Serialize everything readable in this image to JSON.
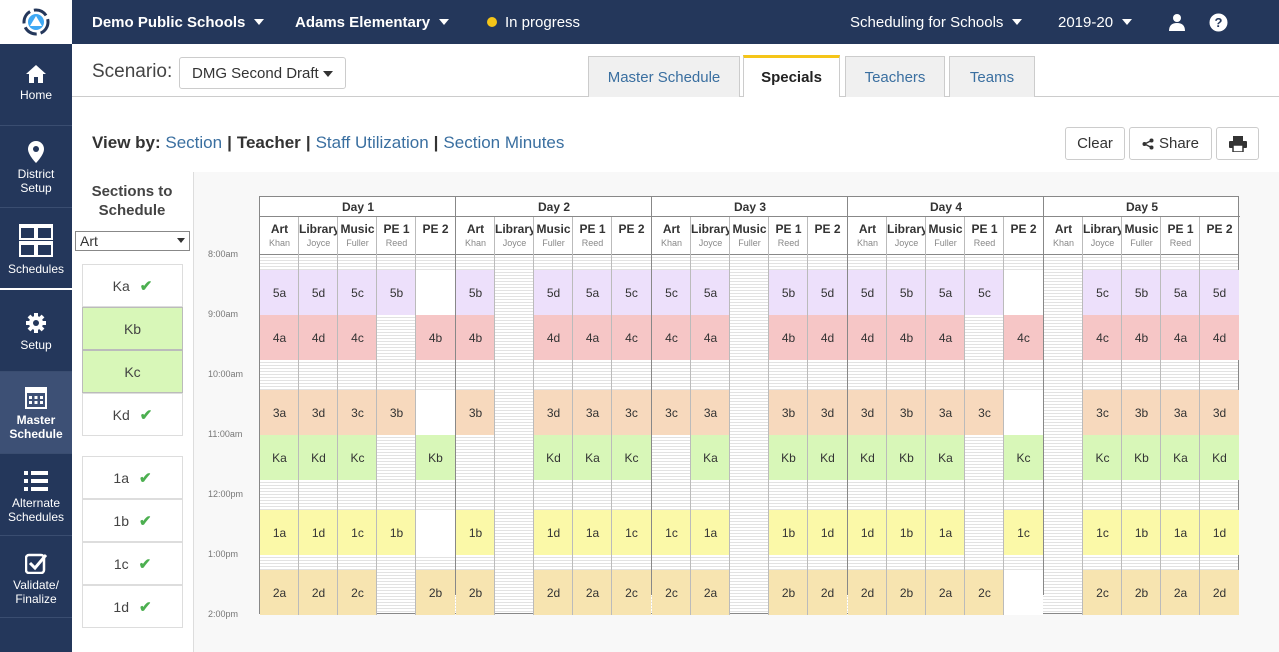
{
  "topbar": {
    "district": "Demo Public Schools",
    "school": "Adams Elementary",
    "status": "In progress",
    "product": "Scheduling for Schools",
    "year": "2019-20"
  },
  "sidenav": [
    {
      "label": "Home",
      "icon": "home-icon"
    },
    {
      "label": "District Setup",
      "icon": "map-pin-icon"
    },
    {
      "label": "Schedules",
      "icon": "calendar-grid-icon"
    },
    {
      "label": "Setup",
      "icon": "gear-icon"
    },
    {
      "label": "Master Schedule",
      "icon": "calendar-icon"
    },
    {
      "label": "Alternate Schedules",
      "icon": "list-icon"
    },
    {
      "label": "Validate/ Finalize",
      "icon": "checkbox-icon"
    }
  ],
  "scenario": {
    "label": "Scenario:",
    "value": "DMG Second Draft"
  },
  "tabs": [
    "Master Schedule",
    "Specials",
    "Teachers",
    "Teams"
  ],
  "active_tab": "Specials",
  "viewby": {
    "label": "View by:",
    "options": [
      "Section",
      "Teacher",
      "Staff Utilization",
      "Section Minutes"
    ],
    "selected": "Teacher"
  },
  "buttons": {
    "clear": "Clear",
    "share": "Share"
  },
  "sections_panel": {
    "title": "Sections to Schedule",
    "filter": "Art",
    "groups": [
      [
        {
          "name": "Ka",
          "checked": true,
          "highlight": false
        },
        {
          "name": "Kb",
          "checked": false,
          "highlight": true
        },
        {
          "name": "Kc",
          "checked": false,
          "highlight": true
        },
        {
          "name": "Kd",
          "checked": true,
          "highlight": false
        }
      ],
      [
        {
          "name": "1a",
          "checked": true,
          "highlight": false
        },
        {
          "name": "1b",
          "checked": true,
          "highlight": false
        },
        {
          "name": "1c",
          "checked": true,
          "highlight": false
        },
        {
          "name": "1d",
          "checked": true,
          "highlight": false
        }
      ]
    ]
  },
  "schedule": {
    "days": [
      "Day 1",
      "Day 2",
      "Day 3",
      "Day 4",
      "Day 5"
    ],
    "columns": [
      {
        "name": "Art",
        "teacher": "Khan"
      },
      {
        "name": "Library",
        "teacher": "Joyce"
      },
      {
        "name": "Music",
        "teacher": "Fuller"
      },
      {
        "name": "PE 1",
        "teacher": "Reed"
      },
      {
        "name": "PE 2",
        "teacher": ""
      }
    ],
    "times": [
      "8:00am",
      "9:00am",
      "10:00am",
      "11:00am",
      "12:00pm",
      "1:00pm",
      "2:00pm"
    ],
    "grid_start_time": "8:00am",
    "periods": [
      {
        "start": "8:15",
        "end": "9:00",
        "color": "#ede0fb",
        "cells": [
          [
            "5a",
            "5d",
            "5c",
            "5b",
            ""
          ],
          [
            "5b",
            "",
            "5d",
            "5a",
            "5c"
          ],
          [
            "5c",
            "5a",
            "",
            "5b",
            "5d"
          ],
          [
            "5d",
            "5b",
            "5a",
            "5c",
            ""
          ],
          [
            "",
            "5c",
            "5b",
            "5a",
            "5d"
          ]
        ]
      },
      {
        "start": "9:00",
        "end": "9:45",
        "color": "#f6c6c6",
        "cells": [
          [
            "4a",
            "4d",
            "4c",
            "",
            "4b"
          ],
          [
            "4b",
            "",
            "4d",
            "4a",
            "4c"
          ],
          [
            "4c",
            "4a",
            "",
            "4b",
            "4d"
          ],
          [
            "4d",
            "4b",
            "4a",
            "",
            "4c"
          ],
          [
            "",
            "4c",
            "4b",
            "4a",
            "4d"
          ]
        ]
      },
      {
        "start": "10:15",
        "end": "11:00",
        "color": "#f7d9bd",
        "cells": [
          [
            "3a",
            "3d",
            "3c",
            "3b",
            ""
          ],
          [
            "3b",
            "",
            "3d",
            "3a",
            "3c"
          ],
          [
            "3c",
            "3a",
            "",
            "3b",
            "3d"
          ],
          [
            "3d",
            "3b",
            "3a",
            "3c",
            ""
          ],
          [
            "",
            "3c",
            "3b",
            "3a",
            "3d"
          ]
        ]
      },
      {
        "start": "11:00",
        "end": "11:45",
        "color": "#d8f7b8",
        "cells": [
          [
            "Ka",
            "Kd",
            "Kc",
            "",
            "Kb"
          ],
          [
            "",
            "",
            "Kd",
            "Ka",
            "Kc"
          ],
          [
            "",
            "Ka",
            "",
            "Kb",
            "Kd"
          ],
          [
            "Kd",
            "Kb",
            "Ka",
            "",
            "Kc"
          ],
          [
            "",
            "Kc",
            "Kb",
            "Ka",
            "Kd"
          ]
        ]
      },
      {
        "start": "12:15",
        "end": "1:00",
        "color": "#fbf9a8",
        "cells": [
          [
            "1a",
            "1d",
            "1c",
            "1b",
            ""
          ],
          [
            "1b",
            "",
            "1d",
            "1a",
            "1c"
          ],
          [
            "1c",
            "1a",
            "",
            "1b",
            "1d"
          ],
          [
            "1d",
            "1b",
            "1a",
            "",
            "1c"
          ],
          [
            "",
            "1c",
            "1b",
            "1a",
            "1d"
          ]
        ]
      },
      {
        "start": "1:15",
        "end": "2:00",
        "color": "#f7e4b0",
        "cells": [
          [
            "2a",
            "2d",
            "2c",
            "",
            "2b"
          ],
          [
            "2b",
            "",
            "2d",
            "2a",
            "2c"
          ],
          [
            "2c",
            "2a",
            "",
            "2b",
            "2d"
          ],
          [
            "2d",
            "2b",
            "2a",
            "2c",
            ""
          ],
          [
            "",
            "2c",
            "2b",
            "2a",
            "2d"
          ]
        ]
      }
    ]
  }
}
